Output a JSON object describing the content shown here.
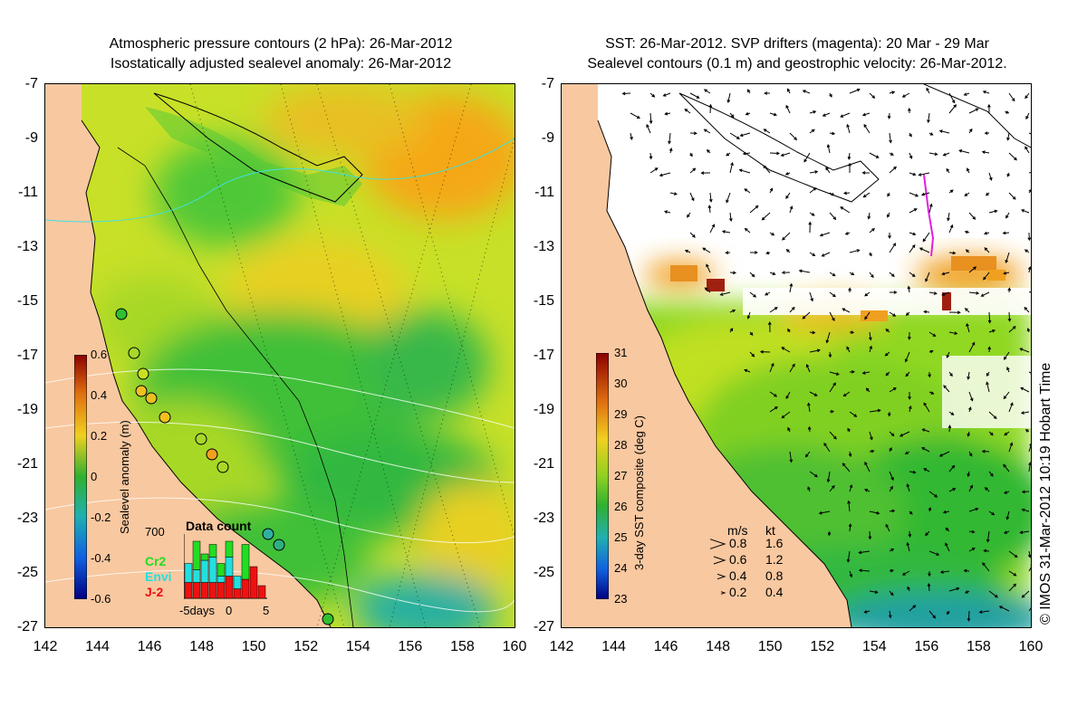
{
  "left_panel": {
    "title_line1": "Atmospheric pressure contours (2 hPa): 26-Mar-2012",
    "title_line2": "Isostatically adjusted sealevel anomaly: 26-Mar-2012",
    "colorbar": {
      "title": "Sealevel anomaly (m)",
      "ticks": [
        "0.6",
        "0.4",
        "0.2",
        "0",
        "-0.2",
        "-0.4",
        "-0.6"
      ]
    },
    "data_count": {
      "title": "Data count",
      "max_label": "700",
      "legend": [
        {
          "label": "Cr2",
          "color": "#22dd22"
        },
        {
          "label": "Envi",
          "color": "#22e0e0"
        },
        {
          "label": "J-2",
          "color": "#ee1111"
        }
      ],
      "x_labels": [
        "-5days",
        "0",
        "5"
      ],
      "bars": [
        {
          "j2": 0.25,
          "envi": 0.3,
          "cr2": 0.0
        },
        {
          "j2": 0.25,
          "envi": 0.2,
          "cr2": 0.45
        },
        {
          "j2": 0.25,
          "envi": 0.35,
          "cr2": 0.1
        },
        {
          "j2": 0.25,
          "envi": 0.4,
          "cr2": 0.2
        },
        {
          "j2": 0.25,
          "envi": 0.1,
          "cr2": 0.2
        },
        {
          "j2": 0.35,
          "envi": 0.3,
          "cr2": 0.25
        },
        {
          "j2": 0.15,
          "envi": 0.2,
          "cr2": 0.0
        },
        {
          "j2": 0.3,
          "envi": 0.0,
          "cr2": 0.55
        },
        {
          "j2": 0.5,
          "envi": 0.0,
          "cr2": 0.0
        },
        {
          "j2": 0.2,
          "envi": 0.0,
          "cr2": 0.0
        }
      ]
    }
  },
  "right_panel": {
    "title_line1": "SST: 26-Mar-2012. SVP drifters (magenta): 20 Mar - 29 Mar",
    "title_line2": "Sealevel contours (0.1 m) and geostrophic velocity: 26-Mar-2012.",
    "colorbar": {
      "title": "3-day SST composite (deg C)",
      "ticks": [
        "31",
        "30",
        "29",
        "28",
        "27",
        "26",
        "25",
        "24",
        "23"
      ]
    },
    "velocity_legend": {
      "header_ms": "m/s",
      "header_kt": "kt",
      "rows": [
        {
          "ms": "0.8",
          "kt": "1.6"
        },
        {
          "ms": "0.6",
          "kt": "1.2"
        },
        {
          "ms": "0.4",
          "kt": "0.8"
        },
        {
          "ms": "0.2",
          "kt": "0.4"
        }
      ]
    }
  },
  "axes": {
    "lat_labels": [
      "-7",
      "-9",
      "-11",
      "-13",
      "-15",
      "-17",
      "-19",
      "-21",
      "-23",
      "-25",
      "-27"
    ],
    "lon_labels": [
      "142",
      "144",
      "146",
      "148",
      "150",
      "152",
      "154",
      "156",
      "158",
      "160"
    ]
  },
  "credit": "© IMOS 31-Mar-2012 10:19 Hobart Time",
  "colors": {
    "land": "#f8c8a0",
    "anomaly_high": "#f0a020",
    "anomaly_mid": "#c8e020",
    "anomaly_low": "#30c030",
    "drifter": "#e020e0"
  }
}
